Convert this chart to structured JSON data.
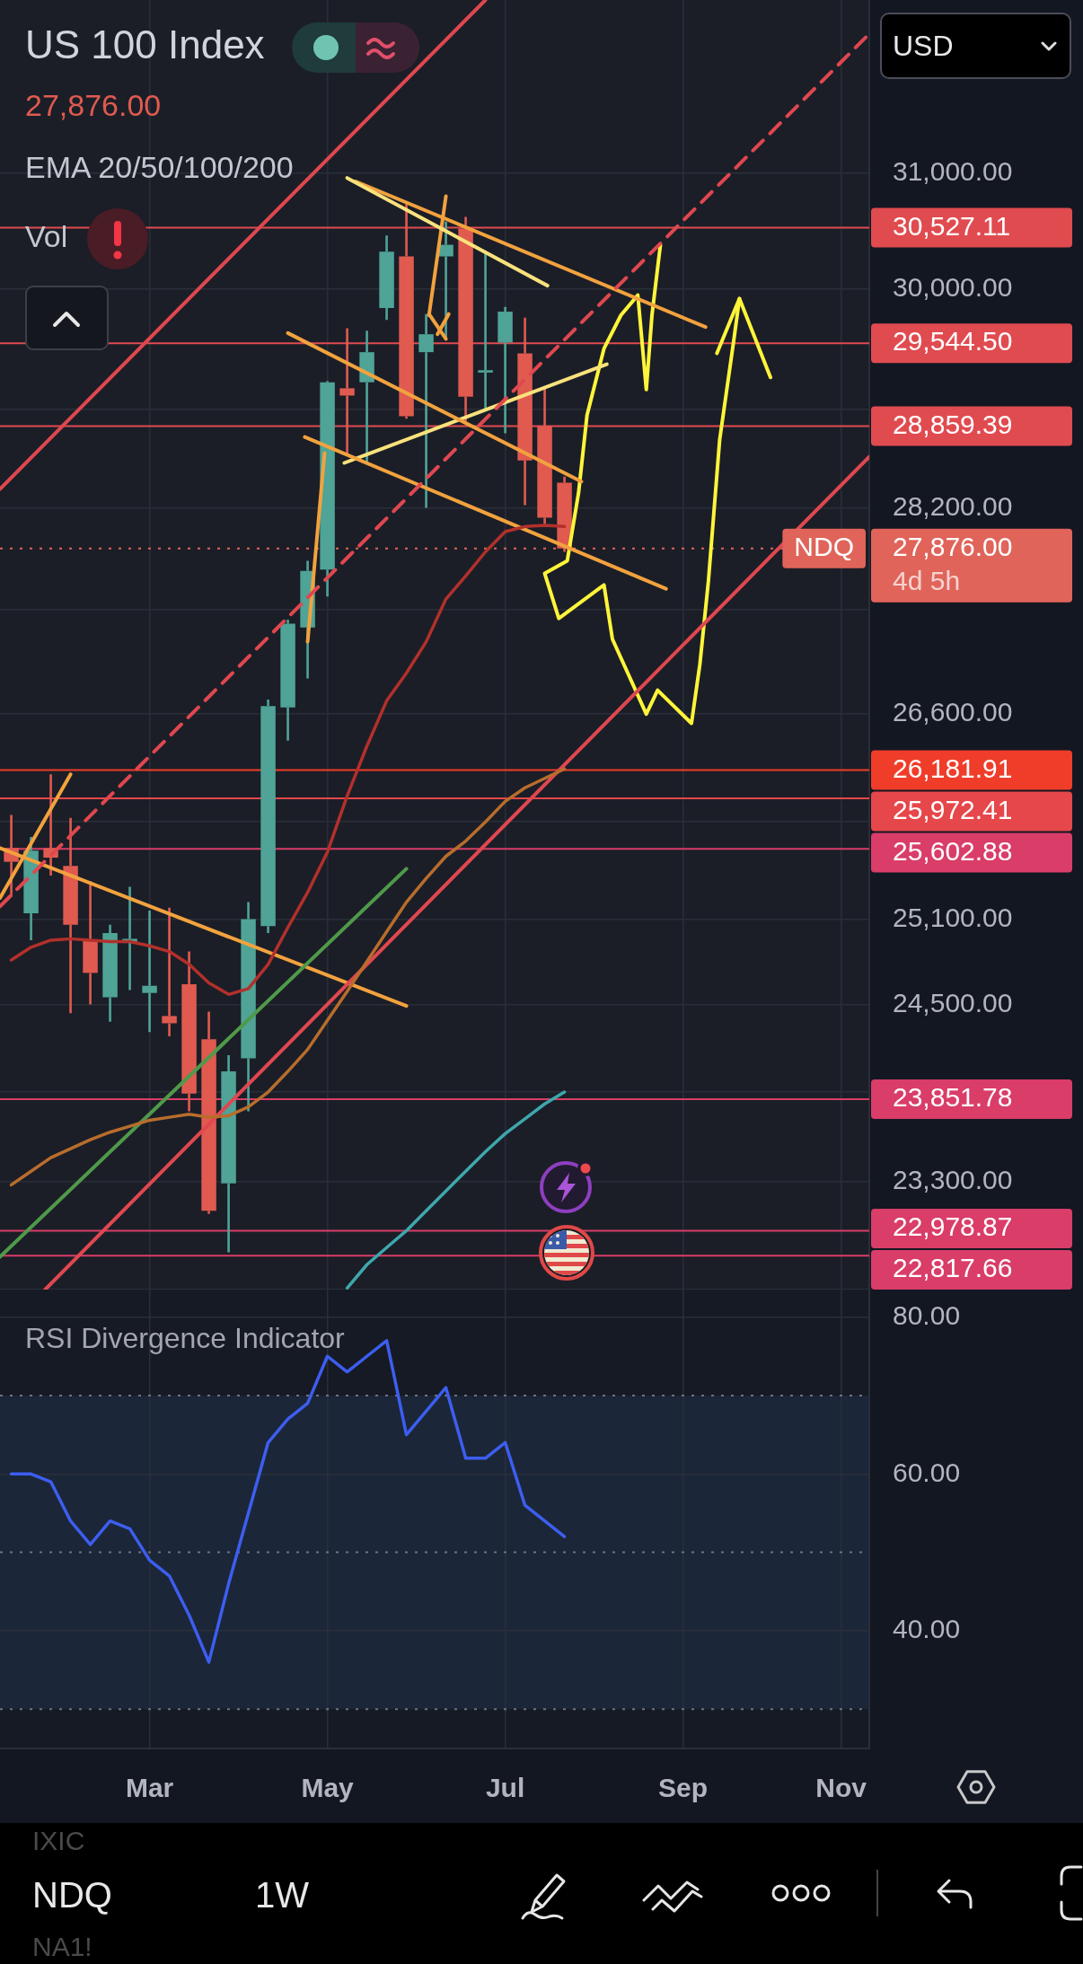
{
  "chart_data": [
    {
      "type": "candlestick",
      "title": "US 100 Index",
      "subtitle": "27,876.00",
      "x": [
        "--01-12",
        "--01-19",
        "--01-26",
        "--02-02",
        "--02-09",
        "--02-16",
        "--02-23",
        "--03-02",
        "--03-09",
        "--03-16",
        "--03-23",
        "--03-30",
        "--04-06",
        "--04-13",
        "--04-20",
        "--04-27",
        "--05-04",
        "--05-11",
        "--05-18",
        "--05-25",
        "--06-01",
        "--06-08",
        "--06-15",
        "--06-22",
        "--06-29",
        "--07-06",
        "--07-13",
        "--07-20",
        "--07-27"
      ],
      "ohlc": [
        [
          25610,
          25850,
          25260,
          25510
        ],
        [
          25140,
          25690,
          24950,
          25590
        ],
        [
          25610,
          26150,
          25410,
          25540
        ],
        [
          25480,
          25830,
          24440,
          25060
        ],
        [
          24950,
          25370,
          24500,
          24720
        ],
        [
          24550,
          25060,
          24380,
          25000
        ],
        [
          24930,
          25330,
          24600,
          24960
        ],
        [
          24580,
          25160,
          24310,
          24630
        ],
        [
          24420,
          25180,
          24280,
          24370
        ],
        [
          24640,
          24870,
          23770,
          23890
        ],
        [
          24260,
          24450,
          23090,
          23110
        ],
        [
          23290,
          24150,
          22840,
          24040
        ],
        [
          24130,
          25220,
          23770,
          25100
        ],
        [
          25050,
          26710,
          25000,
          26660
        ],
        [
          26650,
          27320,
          26400,
          27290
        ],
        [
          27260,
          27780,
          26870,
          27700
        ],
        [
          27710,
          29230,
          27500,
          29220
        ],
        [
          29170,
          29670,
          28620,
          29110
        ],
        [
          29220,
          29650,
          28570,
          29470
        ],
        [
          29840,
          30460,
          29740,
          30320
        ],
        [
          30280,
          30740,
          28920,
          28940
        ],
        [
          29470,
          29790,
          28200,
          29620
        ],
        [
          30280,
          30580,
          29590,
          30380
        ],
        [
          30520,
          30620,
          28900,
          29100
        ],
        [
          29300,
          30310,
          28990,
          29320
        ],
        [
          29550,
          29850,
          28800,
          29810
        ],
        [
          29460,
          29760,
          28220,
          28580
        ],
        [
          28860,
          29180,
          28070,
          28120
        ],
        [
          28400,
          28450,
          27850,
          27876
        ]
      ],
      "colors": [
        "#e05a50",
        "#4fa397",
        "#e05a50",
        "#e05a50",
        "#e05a50",
        "#4fa397",
        "#4fa397",
        "#4fa397",
        "#e05a50",
        "#e05a50",
        "#e05a50",
        "#4fa397",
        "#4fa397",
        "#4fa397",
        "#4fa397",
        "#4fa397",
        "#4fa397",
        "#e05a50",
        "#4fa397",
        "#4fa397",
        "#e05a50",
        "#4fa397",
        "#4fa397",
        "#e05a50",
        "#4fa397",
        "#4fa397",
        "#e05a50",
        "#e05a50",
        "#e05a50"
      ],
      "series": [
        {
          "type": "line",
          "color": "#b3302b",
          "values": [
            24810,
            24900,
            24950,
            24960,
            24950,
            24940,
            24940,
            24910,
            24870,
            24780,
            24650,
            24570,
            24610,
            24780,
            25040,
            25290,
            25580,
            25990,
            26360,
            26700,
            26910,
            27150,
            27480,
            27660,
            27850,
            28010,
            28050,
            28060,
            28050
          ]
        },
        {
          "type": "line",
          "color": "#b86d2c",
          "values": [
            23280,
            23370,
            23460,
            23520,
            23580,
            23630,
            23670,
            23710,
            23730,
            23750,
            23730,
            23740,
            23800,
            23900,
            24040,
            24190,
            24390,
            24590,
            24800,
            25010,
            25220,
            25390,
            25550,
            25660,
            25800,
            25950,
            26050,
            26120,
            26190
          ]
        },
        {
          "type": "line",
          "color": "#3fa7ad",
          "values": [
            null,
            null,
            null,
            null,
            null,
            null,
            null,
            null,
            null,
            null,
            null,
            null,
            null,
            null,
            null,
            null,
            null,
            22610,
            22760,
            22870,
            22980,
            23110,
            23240,
            23370,
            23500,
            23620,
            23720,
            23820,
            23900
          ]
        },
        {
          "type": "line",
          "color": "#e0474f",
          "x": [
            "--01-08",
            "--06-29"
          ],
          "values": [
            28350,
            32560
          ]
        },
        {
          "type": "line",
          "color": "#e0474f",
          "line_style": "dashed",
          "x": [
            "--01-08",
            "--11-12"
          ],
          "values": [
            25190,
            32250
          ]
        },
        {
          "type": "line",
          "color": "#e0474f",
          "x": [
            "--01-24",
            "--11-12"
          ],
          "values": [
            22600,
            28610
          ]
        },
        {
          "type": "line",
          "color": "#4f9a4a",
          "x": [
            "--01-08",
            "--06-01"
          ],
          "values": [
            22810,
            25460
          ]
        },
        {
          "type": "line",
          "color": "#f2a23e",
          "x": [
            "--01-08",
            "--06-01"
          ],
          "values": [
            25610,
            24490
          ]
        },
        {
          "type": "line",
          "color": "#f2a23e",
          "x": [
            "--01-08",
            "--02-02"
          ],
          "values": [
            25250,
            26150
          ]
        },
        {
          "type": "line",
          "color": "#f9e27c",
          "x": [
            "--05-11",
            "--07-21"
          ],
          "values": [
            30960,
            30030
          ]
        },
        {
          "type": "line",
          "color": "#f2a23e",
          "x": [
            "--05-14",
            "--09-15"
          ],
          "values": [
            30930,
            29680
          ]
        },
        {
          "type": "line",
          "color": "#f2a23e",
          "x": [
            "--04-20",
            "--08-02"
          ],
          "values": [
            29630,
            28410
          ]
        },
        {
          "type": "line",
          "color": "#f2a23e",
          "x": [
            "--04-26",
            "--09-01"
          ],
          "values": [
            28770,
            27560
          ]
        },
        {
          "type": "line",
          "color": "#f9e27c",
          "x": [
            "--05-10",
            "--08-11"
          ],
          "values": [
            28560,
            29370
          ]
        },
        {
          "type": "line",
          "color": "#f2a23e",
          "x": [
            "--04-27",
            "--05-03"
          ],
          "values": [
            27150,
            28640
          ]
        },
        {
          "type": "line",
          "color": "#f2a23e",
          "x": [
            "--06-09",
            "--06-15"
          ],
          "values": [
            29780,
            30800
          ]
        },
        {
          "type": "line",
          "color": "#f2a23e",
          "x": [
            "--06-09",
            "--06-15"
          ],
          "values": [
            29790,
            29580
          ]
        },
        {
          "type": "line",
          "color": "#f2a23e",
          "x": [
            "--06-12",
            "--06-16"
          ],
          "values": [
            29620,
            29790
          ]
        },
        {
          "type": "line",
          "color": "#fff53a",
          "x": [
            "--08-30",
            "--08-27",
            "--08-25",
            "--08-22",
            "--08-16",
            "--08-10",
            "--08-04",
            "--08-01",
            "--07-28",
            "--07-20",
            "--07-25",
            "--08-10",
            "--08-13",
            "--08-25",
            "--08-29",
            "--09-10",
            "--09-13",
            "--09-16",
            "--09-20",
            "--09-25",
            "--09-27",
            "--10-08"
          ],
          "values": [
            30380,
            29780,
            29160,
            29950,
            29780,
            29500,
            28950,
            28320,
            27780,
            27680,
            27330,
            27590,
            27170,
            26600,
            26780,
            26530,
            26980,
            27620,
            28750,
            29570,
            29920,
            29260
          ]
        },
        {
          "type": "line",
          "color": "#fff53a",
          "x": [
            "--09-19",
            "--09-27"
          ],
          "values": [
            29460,
            29920
          ]
        }
      ],
      "xlim": [
        "--01-08",
        "--11-12"
      ],
      "xticks": [
        {
          "value": "--03-02",
          "label": null
        },
        {
          "value": "--05-04",
          "label": null
        },
        {
          "value": "--07-06",
          "label": null
        },
        {
          "value": "--09-07",
          "label": null
        },
        {
          "value": "--11-02",
          "label": null
        }
      ],
      "ylim": [
        22600,
        32560
      ],
      "log": true,
      "yticks": [
        {
          "value": 31000,
          "label": "31,000.00"
        },
        {
          "value": 30000,
          "label": "30,000.00"
        },
        {
          "value": 29000,
          "label": null
        },
        {
          "value": 28200,
          "label": "28,200.00"
        },
        {
          "value": 27400,
          "label": null
        },
        {
          "value": 26600,
          "label": "26,600.00"
        },
        {
          "value": 25800,
          "label": null
        },
        {
          "value": 25100,
          "label": "25,100.00"
        },
        {
          "value": 24500,
          "label": "24,500.00"
        },
        {
          "value": 23900,
          "label": null
        },
        {
          "value": 23300,
          "label": "23,300.00"
        }
      ],
      "grid": true,
      "tick_labels": "y",
      "ref_lines": [
        {
          "axis": "y",
          "value": 30527.11,
          "label": "30,527.11",
          "color": "#e04b4f"
        },
        {
          "axis": "y",
          "value": 29544.5,
          "label": "29,544.50",
          "color": "#e04b50"
        },
        {
          "axis": "y",
          "value": 28859.39,
          "label": "28,859.39",
          "color": "#e04b50"
        },
        {
          "axis": "y",
          "value": 27876,
          "label": "27,876.00\n4d 5h",
          "color": "#e0645a",
          "line_style": "dotted"
        },
        {
          "axis": "y",
          "value": 26181.91,
          "label": "26,181.91",
          "color": "#ef3d2a"
        },
        {
          "axis": "y",
          "value": 25972.41,
          "label": "25,972.41",
          "color": "#e6474a"
        },
        {
          "axis": "y",
          "value": 25602.88,
          "label": "25,602.88",
          "color": "#d93d68"
        },
        {
          "axis": "y",
          "value": 23851.78,
          "label": "23,851.78",
          "color": "#d93d68"
        },
        {
          "axis": "y",
          "value": 22978.87,
          "label": "22,978.87",
          "color": "#d93d68"
        },
        {
          "axis": "y",
          "value": 22817.66,
          "label": "22,817.66",
          "color": "#d93d68"
        }
      ],
      "annotations": [
        "EMA 20/50/100/200",
        "Vol",
        "USD",
        {
          "text": "NDQ",
          "y": 27876
        }
      ]
    },
    {
      "type": "line",
      "title": "RSI Divergence Indicator",
      "x": [
        "--01-12",
        "--01-19",
        "--01-26",
        "--02-02",
        "--02-09",
        "--02-16",
        "--02-23",
        "--03-02",
        "--03-09",
        "--03-16",
        "--03-23",
        "--03-30",
        "--04-06",
        "--04-13",
        "--04-20",
        "--04-27",
        "--05-04",
        "--05-11",
        "--05-18",
        "--05-25",
        "--06-01",
        "--06-08",
        "--06-15",
        "--06-22",
        "--06-29",
        "--07-06",
        "--07-13",
        "--07-20",
        "--07-27"
      ],
      "series": [
        {
          "color": "#3d5ef0",
          "values": [
            60,
            60,
            59,
            54,
            51,
            54,
            53,
            49,
            47,
            42,
            36,
            46,
            55,
            64,
            67,
            69,
            75,
            73,
            75,
            77,
            65,
            68,
            71,
            62,
            62,
            64,
            56,
            54,
            52
          ]
        }
      ],
      "xlim": [
        "--01-08",
        "--11-12"
      ],
      "xticks": [
        {
          "value": "--03-02",
          "label": "Mar"
        },
        {
          "value": "--05-04",
          "label": "May"
        },
        {
          "value": "--07-06",
          "label": "Jul"
        },
        {
          "value": "--09-07",
          "label": "Sep"
        },
        {
          "value": "--11-02",
          "label": "Nov"
        }
      ],
      "ylim": [
        25,
        83.5
      ],
      "yticks": [
        {
          "value": 80,
          "label": "80.00"
        },
        {
          "value": 60,
          "label": "60.00"
        },
        {
          "value": 40,
          "label": "40.00"
        }
      ],
      "grid": true,
      "bands": [
        {
          "axis": "y",
          "from": 30,
          "to": 70,
          "color": "#1b2638"
        }
      ],
      "ref_lines": [
        {
          "axis": "y",
          "value": 70,
          "color": "#70737d",
          "line_style": "dotted"
        },
        {
          "axis": "y",
          "value": 50,
          "color": "#70737d",
          "line_style": "dotted"
        },
        {
          "axis": "y",
          "value": 30,
          "color": "#70737d",
          "line_style": "dotted"
        }
      ],
      "annotations": [
        "NDQ",
        "1W",
        "IXIC",
        "NA1!"
      ]
    }
  ]
}
